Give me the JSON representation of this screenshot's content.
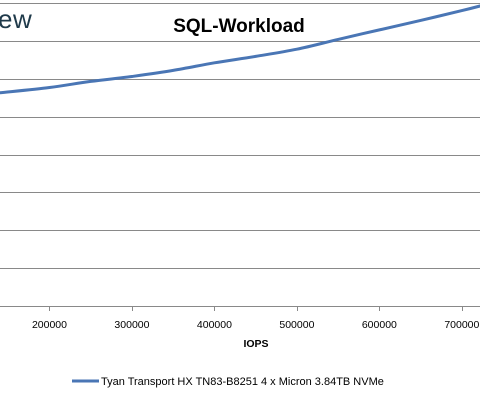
{
  "logo_text": "ew",
  "chart_data": {
    "type": "line",
    "title": "SQL-Workload",
    "xlabel": "IOPS",
    "ylabel": "",
    "x_ticks": [
      200000,
      300000,
      400000,
      500000,
      600000,
      700000
    ],
    "x_tick_labels": [
      "200000",
      "300000",
      "400000",
      "500000",
      "600000",
      "700000"
    ],
    "xlim": [
      140000,
      722000
    ],
    "ylim": [
      0,
      8
    ],
    "grid": true,
    "legend_placement": "bottom",
    "series": [
      {
        "name": "Tyan Transport HX TN83-B8251 4 x Micron 3.84TB NVMe",
        "color": "#4a76b5",
        "x": [
          140000,
          200000,
          250000,
          300000,
          350000,
          400000,
          450000,
          500000,
          550000,
          600000,
          650000,
          700000,
          722000
        ],
        "y": [
          5.63,
          5.77,
          5.93,
          6.06,
          6.22,
          6.42,
          6.59,
          6.78,
          7.04,
          7.29,
          7.54,
          7.8,
          7.92
        ]
      }
    ]
  }
}
